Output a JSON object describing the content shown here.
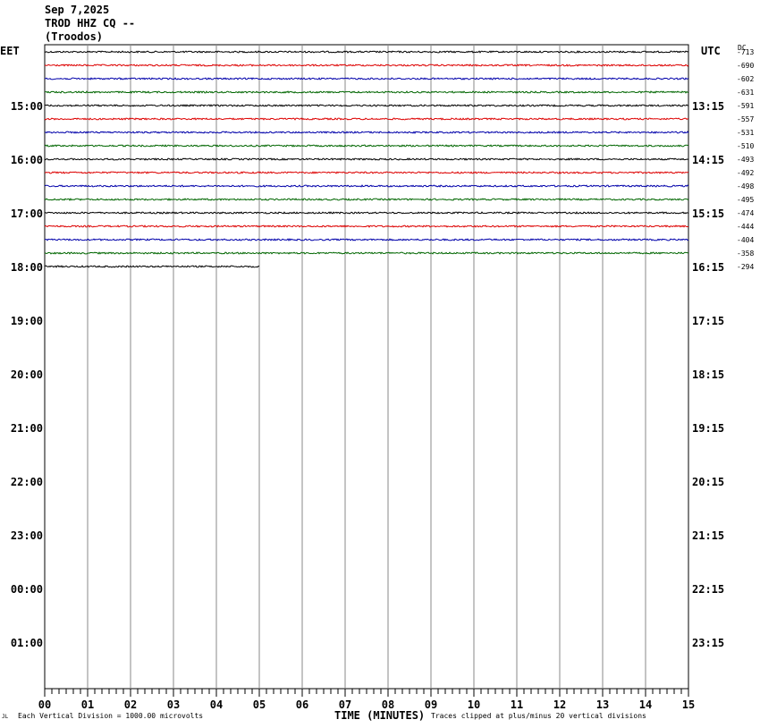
{
  "header": {
    "date": "Sep 7,2025",
    "station": "TROD HHZ CQ --",
    "location": "(Troodos)"
  },
  "left_tz": "EET",
  "right_tz": "UTC",
  "dc_label": "DC",
  "footer": {
    "scale_note": "Each Vertical Division = 1000.00 microvolts",
    "xaxis_title": "TIME (MINUTES)",
    "clip_note": "Traces clipped at plus/minus 20 vertical divisions",
    "corner_mark": "JL"
  },
  "colors": {
    "black": "#000000",
    "red": "#dd0000",
    "blue": "#0000aa",
    "green": "#006600",
    "grid": "#888888"
  },
  "chart_data": {
    "type": "line",
    "title": "",
    "xlabel": "TIME (MINUTES)",
    "xlim": [
      0,
      15
    ],
    "x_ticks": [
      "00",
      "01",
      "02",
      "03",
      "04",
      "05",
      "06",
      "07",
      "08",
      "09",
      "10",
      "11",
      "12",
      "13",
      "14",
      "15"
    ],
    "left_hour_labels": [
      "15:00",
      "16:00",
      "17:00",
      "18:00",
      "19:00",
      "20:00",
      "21:00",
      "22:00",
      "23:00",
      "00:00",
      "01:00"
    ],
    "right_hour_labels": [
      "13:15",
      "14:15",
      "15:15",
      "16:15",
      "17:15",
      "18:15",
      "19:15",
      "20:15",
      "21:15",
      "22:15",
      "23:15"
    ],
    "traces": [
      {
        "color": "black",
        "dc": "-713",
        "end_minute": 15
      },
      {
        "color": "red",
        "dc": "-690",
        "end_minute": 15
      },
      {
        "color": "blue",
        "dc": "-602",
        "end_minute": 15
      },
      {
        "color": "green",
        "dc": "-631",
        "end_minute": 15
      },
      {
        "color": "black",
        "dc": "-591",
        "end_minute": 15
      },
      {
        "color": "red",
        "dc": "-557",
        "end_minute": 15
      },
      {
        "color": "blue",
        "dc": "-531",
        "end_minute": 15
      },
      {
        "color": "green",
        "dc": "-510",
        "end_minute": 15
      },
      {
        "color": "black",
        "dc": "-493",
        "end_minute": 15
      },
      {
        "color": "red",
        "dc": "-492",
        "end_minute": 15
      },
      {
        "color": "blue",
        "dc": "-498",
        "end_minute": 15
      },
      {
        "color": "green",
        "dc": "-495",
        "end_minute": 15
      },
      {
        "color": "black",
        "dc": "-474",
        "end_minute": 15
      },
      {
        "color": "red",
        "dc": "-444",
        "end_minute": 15
      },
      {
        "color": "blue",
        "dc": "-404",
        "end_minute": 15
      },
      {
        "color": "green",
        "dc": "-358",
        "end_minute": 15
      },
      {
        "color": "black",
        "dc": "-294",
        "end_minute": 5
      }
    ]
  }
}
